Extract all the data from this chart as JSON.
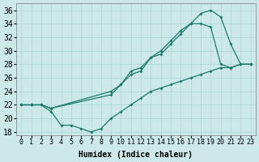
{
  "xlabel": "Humidex (Indice chaleur)",
  "xlim": [
    -0.5,
    23.5
  ],
  "ylim": [
    17.5,
    37.0
  ],
  "xticks": [
    0,
    1,
    2,
    3,
    4,
    5,
    6,
    7,
    8,
    9,
    10,
    11,
    12,
    13,
    14,
    15,
    16,
    17,
    18,
    19,
    20,
    21,
    22,
    23
  ],
  "yticks": [
    18,
    20,
    22,
    24,
    26,
    28,
    30,
    32,
    34,
    36
  ],
  "bg_color": "#cce8e8",
  "line_color": "#1a7a6a",
  "grid_color": "#aad4d4",
  "series": [
    {
      "x": [
        0,
        1,
        2,
        3,
        4,
        5,
        6,
        7,
        8,
        9,
        10,
        11,
        12,
        13,
        14,
        15,
        16,
        17,
        18,
        19,
        20,
        21,
        22,
        23
      ],
      "y": [
        22,
        22,
        22,
        21,
        19,
        19,
        18.5,
        18,
        18.5,
        20,
        21,
        22,
        23,
        24,
        24.5,
        25,
        25.5,
        26,
        26.5,
        27,
        27.5,
        27.5,
        28,
        28
      ]
    },
    {
      "x": [
        0,
        1,
        2,
        3,
        9,
        10,
        11,
        12,
        13,
        14,
        15,
        16,
        17,
        18,
        19,
        20,
        21,
        22,
        23
      ],
      "y": [
        22,
        22,
        22,
        21.5,
        23.5,
        25,
        26.5,
        27,
        29,
        29.5,
        31,
        32.5,
        34,
        34,
        33.5,
        28,
        27.5,
        28,
        28
      ]
    },
    {
      "x": [
        0,
        1,
        2,
        3,
        9,
        10,
        11,
        12,
        13,
        14,
        15,
        16,
        17,
        18,
        19,
        20,
        21,
        22,
        23
      ],
      "y": [
        22,
        22,
        22,
        21.5,
        24,
        25,
        27,
        27.5,
        29,
        30,
        31.5,
        33,
        34,
        35.5,
        36,
        35,
        31,
        28,
        28
      ]
    }
  ],
  "font_size": 7,
  "tick_font_size": 6,
  "xlabel_fontsize": 7
}
